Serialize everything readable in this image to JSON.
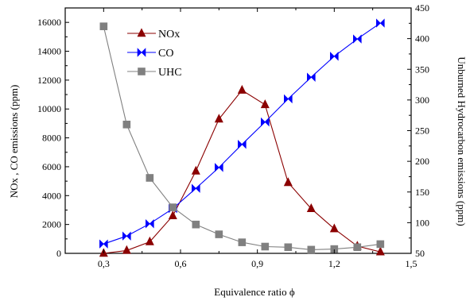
{
  "chart_data": {
    "type": "line",
    "xlabel": "Equivalence ratio ϕ",
    "ylabel_left": "NOx , CO emissions (ppm)",
    "ylabel_right": "Unburned Hydrocarbon emissions (ppm)",
    "xlim": [
      0.15,
      1.5
    ],
    "ylim_left": [
      0,
      17000
    ],
    "ylim_right": [
      50,
      450
    ],
    "x_ticks": [
      0.3,
      0.6,
      0.9,
      1.2,
      1.5
    ],
    "x_tick_labels": [
      "0,3",
      "0,6",
      "0,9",
      "1,2",
      "1,5"
    ],
    "y_left_ticks": [
      0,
      2000,
      4000,
      6000,
      8000,
      10000,
      12000,
      14000,
      16000
    ],
    "y_left_tick_labels": [
      "0",
      "2000",
      "4000",
      "6000",
      "8000",
      "10000",
      "12000",
      "14000",
      "16000"
    ],
    "y_right_ticks": [
      50,
      100,
      150,
      200,
      250,
      300,
      350,
      400,
      450
    ],
    "y_right_tick_labels": [
      "50",
      "100",
      "150",
      "200",
      "250",
      "300",
      "350",
      "400",
      "450"
    ],
    "grid": false,
    "legend_position": "top-center",
    "series": [
      {
        "name": "NOx",
        "axis": "left",
        "marker": "triangle",
        "color": "#8b0000",
        "x": [
          0.3,
          0.39,
          0.48,
          0.57,
          0.66,
          0.75,
          0.84,
          0.93,
          1.02,
          1.11,
          1.2,
          1.29,
          1.38
        ],
        "y": [
          0,
          200,
          800,
          2600,
          5700,
          9300,
          11300,
          10300,
          4900,
          3100,
          1700,
          500,
          100
        ]
      },
      {
        "name": "CO",
        "axis": "left",
        "marker": "bowtie",
        "color": "#0000ff",
        "x": [
          0.3,
          0.39,
          0.48,
          0.57,
          0.66,
          0.75,
          0.84,
          0.93,
          1.02,
          1.11,
          1.2,
          1.29,
          1.38
        ],
        "y": [
          650,
          1200,
          2050,
          3100,
          4500,
          5950,
          7550,
          9100,
          10700,
          12200,
          13650,
          14850,
          15950
        ]
      },
      {
        "name": "UHC",
        "axis": "right",
        "marker": "square",
        "color": "#808080",
        "x": [
          0.3,
          0.39,
          0.48,
          0.57,
          0.66,
          0.75,
          0.84,
          0.93,
          1.02,
          1.11,
          1.2,
          1.29,
          1.38
        ],
        "y": [
          420,
          260,
          173,
          125,
          97,
          81,
          68,
          61,
          60,
          56,
          57,
          60,
          65
        ]
      }
    ]
  }
}
